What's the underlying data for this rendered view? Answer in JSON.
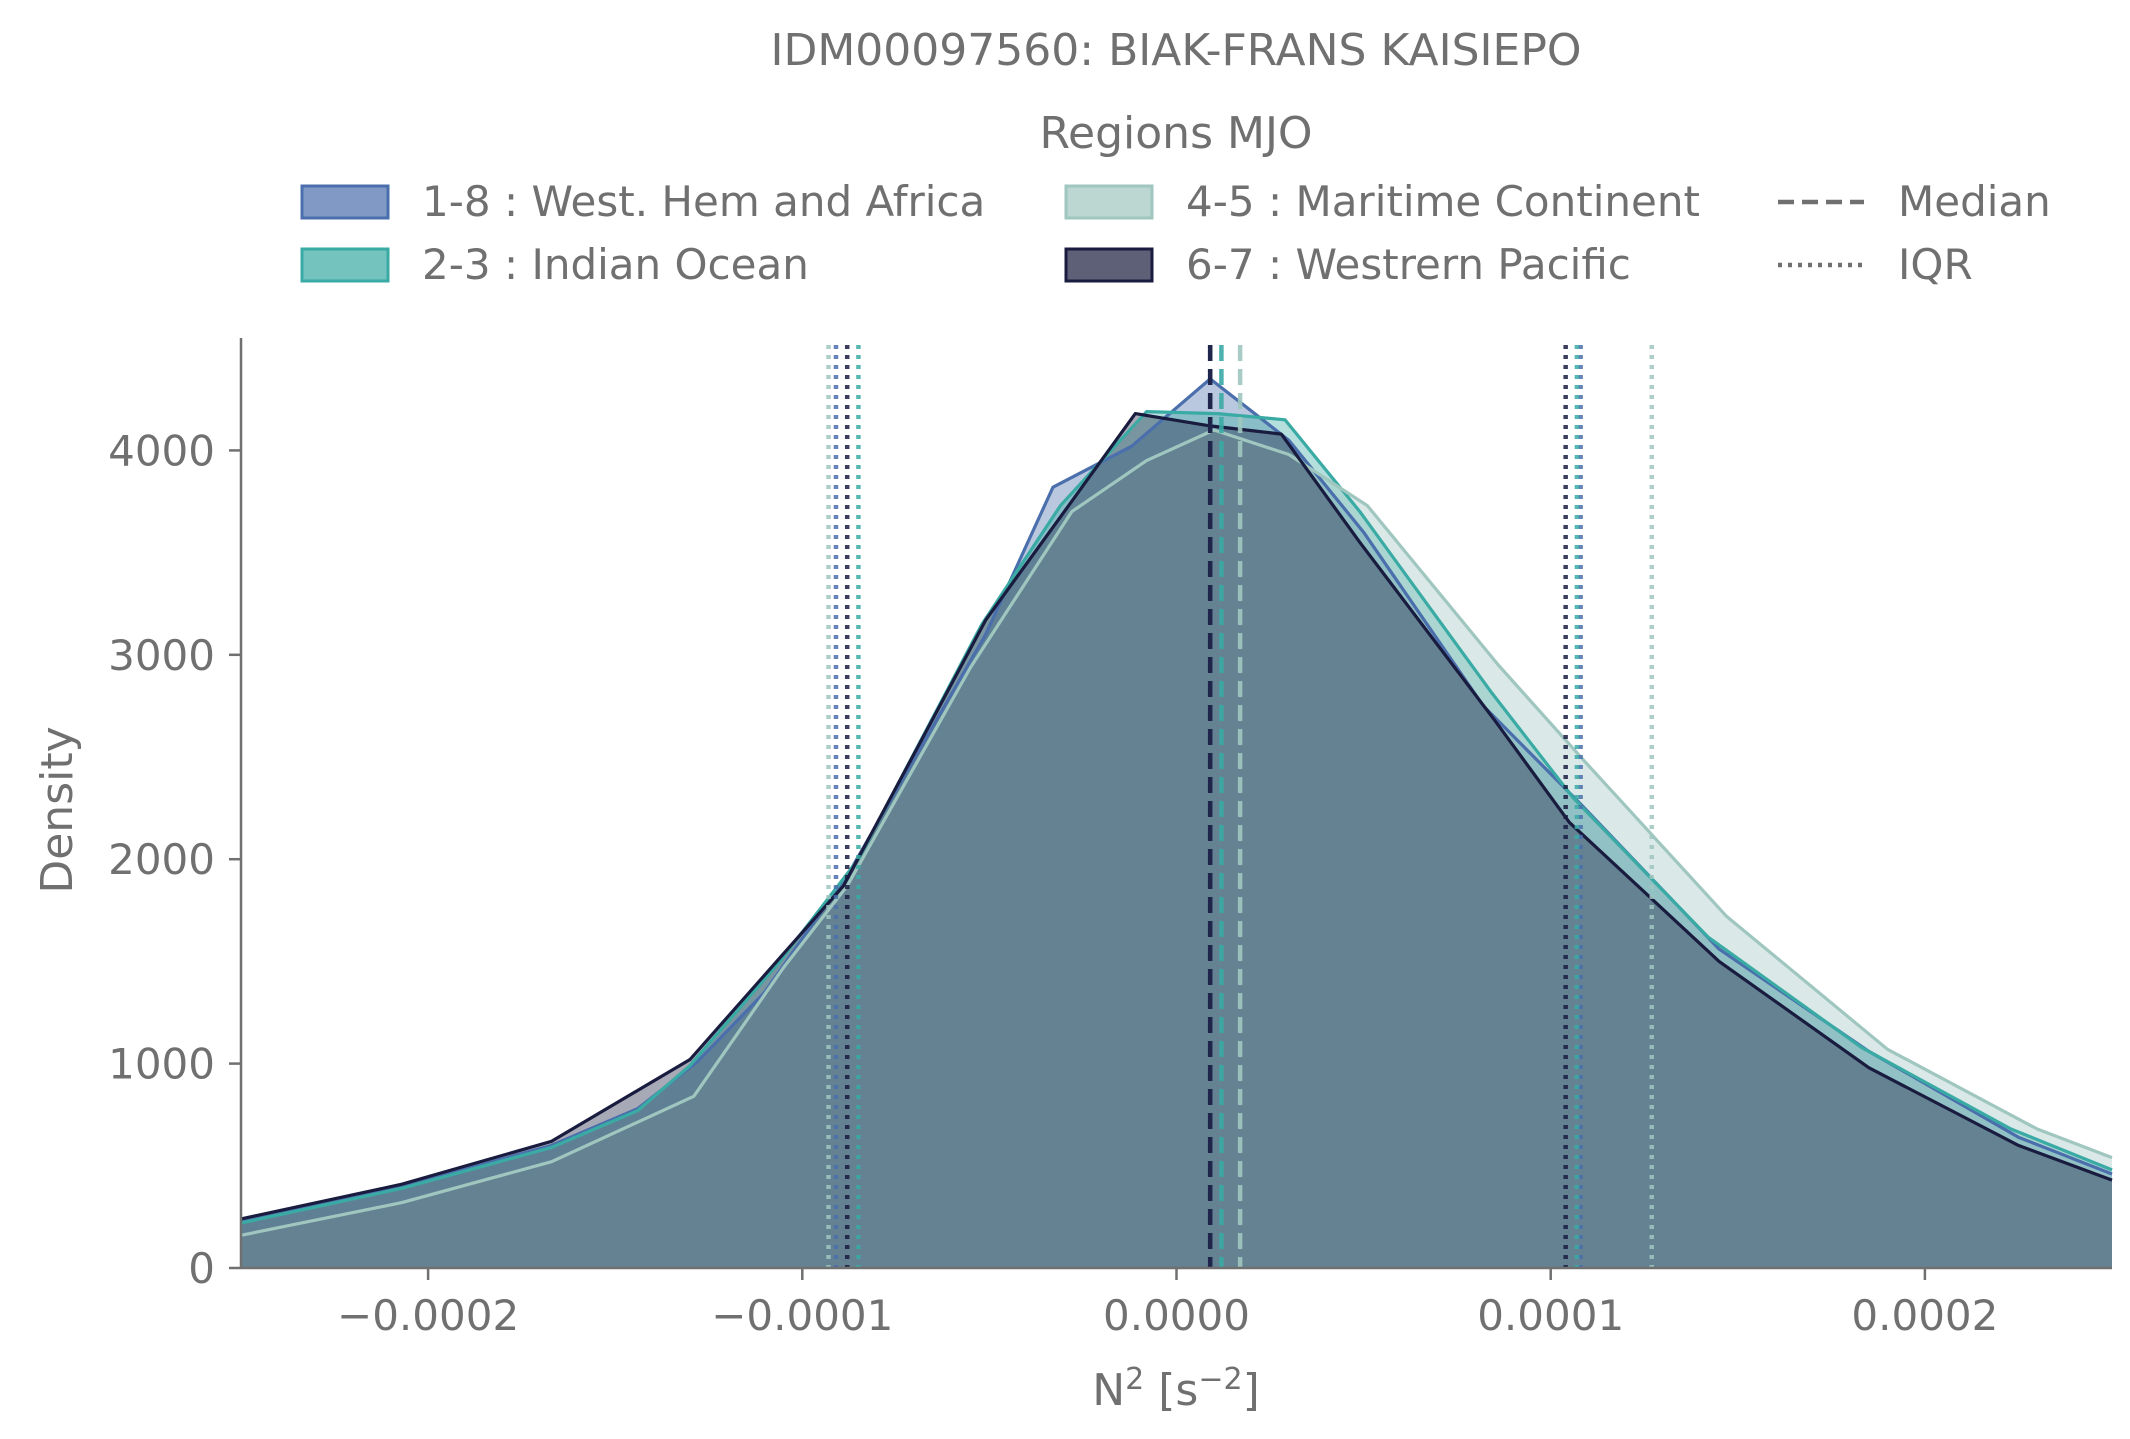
{
  "chart_data": {
    "type": "area",
    "title": "IDM00097560: BIAK-FRANS KAISIEPO",
    "xlabel": "N² [s⁻²]",
    "xlabel_base": "N",
    "xlabel_base_sup": "2",
    "xlabel_unit_pre": " [s",
    "xlabel_unit_sup": "−2",
    "xlabel_unit_post": "]",
    "ylabel": "Density",
    "xlim": [
      -0.00025,
      0.00025
    ],
    "ylim": [
      0,
      4550
    ],
    "xticks": [
      -0.0002,
      -0.0001,
      0.0,
      0.0001,
      0.0002
    ],
    "xtick_labels": [
      "−0.0002",
      "−0.0001",
      "0.0000",
      "0.0001",
      "0.0002"
    ],
    "yticks": [
      0,
      1000,
      2000,
      3000,
      4000
    ],
    "ytick_labels": [
      "0",
      "1000",
      "2000",
      "3000",
      "4000"
    ],
    "grid": false,
    "legend": {
      "title": "Regions MJO",
      "placement": "top-center",
      "style_items": [
        {
          "label": "Median",
          "dash": "dashed"
        },
        {
          "label": "IQR",
          "dash": "dotted"
        }
      ]
    },
    "series": [
      {
        "name": "1-8 : West. Hem and Africa",
        "color": "#4a6fac",
        "x": [
          -0.00025,
          -0.000207,
          -0.000167,
          -0.000144,
          -0.000128,
          -0.00011,
          -8.7e-05,
          -5.1e-05,
          -3.3e-05,
          -1.2e-05,
          9e-06,
          3e-05,
          5e-05,
          8.2e-05,
          0.000108,
          0.000145,
          0.000185,
          0.000225,
          0.00025
        ],
        "y": [
          230,
          400,
          600,
          780,
          1010,
          1350,
          1950,
          3100,
          3820,
          4020,
          4350,
          4050,
          3600,
          2750,
          2270,
          1560,
          1060,
          640,
          460
        ],
        "median": 9e-06,
        "iqr": [
          -9.1e-05,
          0.000108
        ]
      },
      {
        "name": "2-3 : Indian Ocean",
        "color": "#3aaaa4",
        "x": [
          -0.00025,
          -0.000207,
          -0.000167,
          -0.000144,
          -0.00013,
          -0.000106,
          -8.5e-05,
          -5.2e-05,
          -3.1e-05,
          -8e-06,
          1.1e-05,
          2.9e-05,
          4.9e-05,
          8.4e-05,
          0.000106,
          0.000142,
          0.000183,
          0.000223,
          0.00025
        ],
        "y": [
          220,
          390,
          590,
          770,
          990,
          1500,
          2000,
          3150,
          3730,
          4190,
          4180,
          4150,
          3700,
          2820,
          2300,
          1620,
          1080,
          680,
          480
        ],
        "median": 1.2e-05,
        "iqr": [
          -8.5e-05,
          0.000107
        ]
      },
      {
        "name": "4-5 : Maritime Continent",
        "color": "#9fc6bf",
        "x": [
          -0.00025,
          -0.000207,
          -0.000167,
          -0.000129,
          -0.000105,
          -8.8e-05,
          -5.5e-05,
          -2.8e-05,
          -8e-06,
          1e-05,
          3e-05,
          5.1e-05,
          8.6e-05,
          0.000109,
          0.000147,
          0.00019,
          0.00023,
          0.00025
        ],
        "y": [
          160,
          320,
          520,
          840,
          1470,
          1870,
          2940,
          3700,
          3950,
          4100,
          3980,
          3730,
          2950,
          2480,
          1720,
          1070,
          680,
          540
        ],
        "median": 1.7e-05,
        "iqr": [
          -9.3e-05,
          0.000127
        ]
      },
      {
        "name": "6-7 : Westrern Pacific",
        "color": "#191c3f",
        "x": [
          -0.00025,
          -0.000207,
          -0.000167,
          -0.00013,
          -8.9e-05,
          -5.1e-05,
          -1.1e-05,
          9e-06,
          2.8e-05,
          4.9e-05,
          8.5e-05,
          0.000105,
          0.000145,
          0.000185,
          0.000225,
          0.00025
        ],
        "y": [
          240,
          410,
          620,
          1020,
          1870,
          3170,
          4180,
          4120,
          4080,
          3550,
          2680,
          2180,
          1500,
          980,
          600,
          430
        ],
        "median": 9e-06,
        "iqr": [
          -8.8e-05,
          0.000104
        ]
      }
    ]
  }
}
